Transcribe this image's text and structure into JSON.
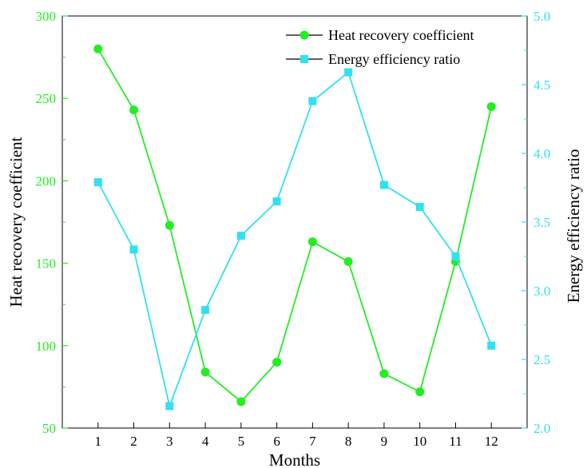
{
  "chart_data": {
    "type": "line",
    "xlabel": "Months",
    "x": [
      1,
      2,
      3,
      4,
      5,
      6,
      7,
      8,
      9,
      10,
      11,
      12
    ],
    "xlim": [
      0,
      13
    ],
    "x_ticks": [
      "1",
      "2",
      "3",
      "4",
      "5",
      "6",
      "7",
      "8",
      "9",
      "10",
      "11",
      "12"
    ],
    "left_axis": {
      "label": "Heat recovery  coefficient",
      "range": [
        50,
        300
      ],
      "ticks": [
        50,
        100,
        150,
        200,
        250,
        300
      ],
      "tick_labels": [
        "50",
        "100",
        "150",
        "200",
        "250",
        "300"
      ],
      "color": "#22ee22"
    },
    "right_axis": {
      "label": "Energy  efficiency  ratio",
      "range": [
        2.0,
        5.0
      ],
      "ticks": [
        2.0,
        2.5,
        3.0,
        3.5,
        4.0,
        4.5,
        5.0
      ],
      "tick_labels": [
        "2.0",
        "2.5",
        "3.0",
        "3.5",
        "4.0",
        "4.5",
        "5.0"
      ],
      "color": "#33e0f0"
    },
    "series": [
      {
        "name": "Heat recovery coefficient",
        "axis": "left",
        "marker": "circle",
        "color": "#22ee22",
        "values": [
          280,
          243,
          173,
          84,
          66,
          90,
          163,
          151,
          83,
          72,
          151,
          245
        ]
      },
      {
        "name": "Energy efficiency ratio",
        "axis": "right",
        "marker": "square",
        "color": "#33e0f0",
        "values": [
          3.79,
          3.3,
          2.16,
          2.86,
          3.4,
          3.65,
          4.38,
          4.59,
          3.77,
          3.61,
          3.25,
          2.6
        ]
      }
    ],
    "legend_position": "top-right",
    "grid": false
  }
}
